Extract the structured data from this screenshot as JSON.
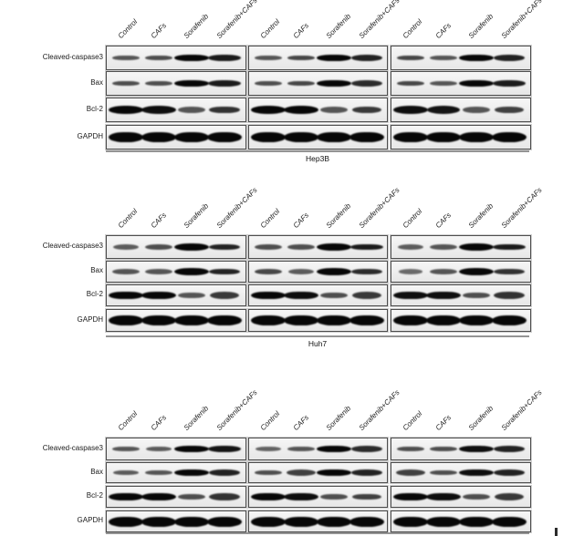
{
  "figure": {
    "type": "western-blot",
    "lane_labels": [
      "Control",
      "CAFs",
      "Sorafenib",
      "Sorafenib+CAFs"
    ],
    "sections": [
      {
        "cell_line": "Hep3B",
        "rows": [
          {
            "protein": "Cleaved-caspase3",
            "panels": [
              [
                0.45,
                0.5,
                1,
                0.85
              ],
              [
                0.45,
                0.55,
                1,
                0.8
              ],
              [
                0.55,
                0.45,
                1,
                0.8
              ]
            ]
          },
          {
            "protein": "Bax",
            "panels": [
              [
                0.5,
                0.5,
                1,
                0.85
              ],
              [
                0.5,
                0.55,
                1,
                0.75
              ],
              [
                0.55,
                0.45,
                1,
                0.85
              ]
            ]
          },
          {
            "protein": "Bcl-2",
            "panels": [
              [
                1,
                0.95,
                0.45,
                0.7
              ],
              [
                1,
                1,
                0.45,
                0.65
              ],
              [
                0.95,
                0.9,
                0.45,
                0.6
              ]
            ]
          },
          {
            "protein": "GAPDH",
            "panels": [
              [
                1,
                1,
                1,
                1
              ],
              [
                1,
                1,
                1,
                1
              ],
              [
                1,
                1,
                1,
                1
              ]
            ]
          }
        ]
      },
      {
        "cell_line": "Huh7",
        "rows": [
          {
            "protein": "Cleaved-caspase3",
            "panels": [
              [
                0.4,
                0.5,
                1,
                0.8
              ],
              [
                0.5,
                0.5,
                1,
                0.85
              ],
              [
                0.4,
                0.45,
                1,
                0.85
              ]
            ]
          },
          {
            "protein": "Bax",
            "panels": [
              [
                0.45,
                0.45,
                1,
                0.8
              ],
              [
                0.55,
                0.4,
                1,
                0.75
              ],
              [
                0.3,
                0.45,
                1,
                0.7
              ]
            ]
          },
          {
            "protein": "Bcl-2",
            "panels": [
              [
                1,
                1,
                0.45,
                0.65
              ],
              [
                1,
                0.95,
                0.5,
                0.65
              ],
              [
                0.95,
                0.95,
                0.5,
                0.7
              ]
            ]
          },
          {
            "protein": "GAPDH",
            "panels": [
              [
                1,
                1,
                1,
                1
              ],
              [
                1,
                1,
                1,
                1
              ],
              [
                1,
                1,
                1,
                1
              ]
            ]
          }
        ]
      },
      {
        "cell_line": "",
        "rows": [
          {
            "protein": "Cleaved-caspase3",
            "panels": [
              [
                0.45,
                0.4,
                1,
                0.9
              ],
              [
                0.35,
                0.45,
                1,
                0.75
              ],
              [
                0.5,
                0.5,
                0.95,
                0.8
              ]
            ]
          },
          {
            "protein": "Bax",
            "panels": [
              [
                0.4,
                0.45,
                1,
                0.8
              ],
              [
                0.5,
                0.6,
                1,
                0.8
              ],
              [
                0.6,
                0.5,
                0.95,
                0.8
              ]
            ]
          },
          {
            "protein": "Bcl-2",
            "panels": [
              [
                1,
                1,
                0.5,
                0.7
              ],
              [
                1,
                0.95,
                0.5,
                0.6
              ],
              [
                1,
                0.95,
                0.5,
                0.65
              ]
            ]
          },
          {
            "protein": "GAPDH",
            "panels": [
              [
                1,
                1,
                1,
                1
              ],
              [
                1,
                1,
                1,
                1
              ],
              [
                1,
                1,
                1,
                1
              ]
            ]
          }
        ]
      }
    ]
  }
}
